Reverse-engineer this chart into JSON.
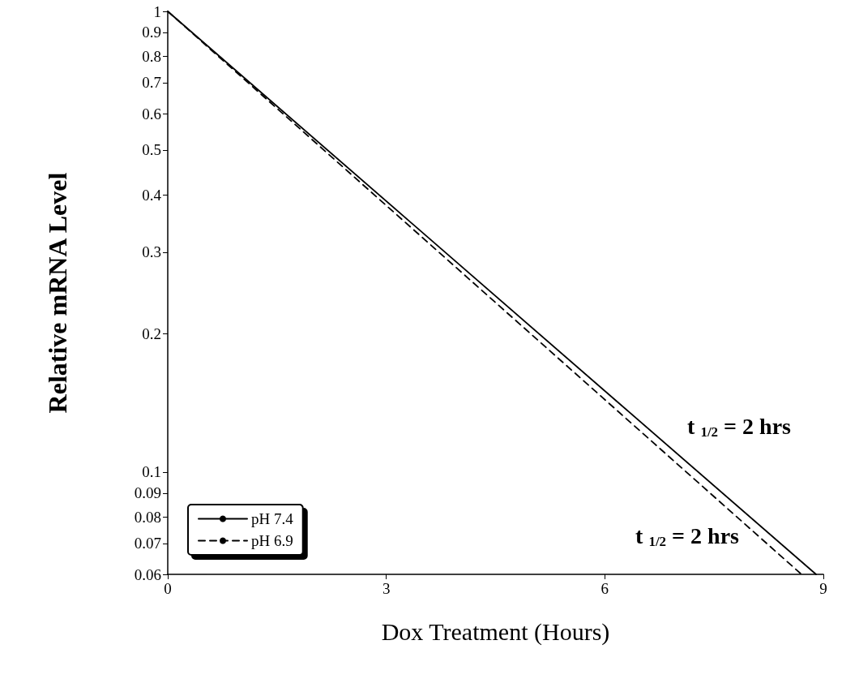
{
  "chart_data": {
    "type": "line",
    "xlabel": "Dox Treatment (Hours)",
    "ylabel": "Relative mRNA Level",
    "x": [
      0,
      8.9
    ],
    "series": [
      {
        "name": "pH 7.4",
        "color": "#000000",
        "line_style": "solid",
        "values": [
          1,
          0.06
        ]
      },
      {
        "name": "pH 6.9",
        "color": "#000000",
        "line_style": "dashed",
        "x": [
          0,
          8.7
        ],
        "values": [
          1,
          0.06
        ]
      }
    ],
    "xlim": [
      0,
      9
    ],
    "xticks": [
      0,
      3,
      6,
      9
    ],
    "ylim": [
      0.06,
      1
    ],
    "log": "y",
    "yticks": [
      0.06,
      0.07,
      0.08,
      0.09,
      0.1,
      0.2,
      0.3,
      0.4,
      0.5,
      0.6,
      0.7,
      0.8,
      0.9,
      1
    ],
    "annotations": [
      "t $_{1/2}$ = 2 hrs",
      "t $_{1/2}$ = 2 hrs"
    ],
    "marker": "none",
    "grid": false,
    "legend": "bottom left"
  }
}
